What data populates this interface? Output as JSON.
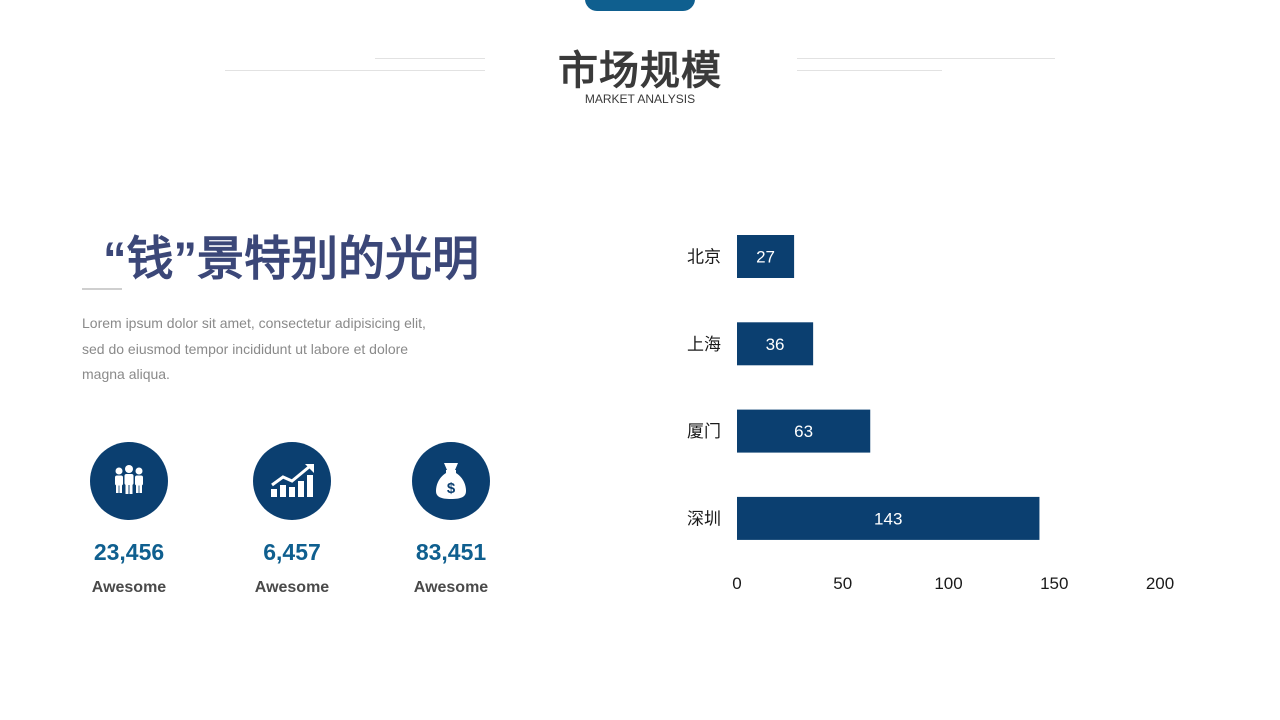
{
  "header": {
    "title": "市场规模",
    "subtitle": "MARKET ANALYSIS"
  },
  "left": {
    "headline": "“钱”景特别的光明",
    "body": "Lorem ipsum dolor sit amet, consectetur adipisicing elit, sed do eiusmod tempor incididunt ut labore et dolore magna aliqua."
  },
  "stats": [
    {
      "icon": "team-icon",
      "value": "23,456",
      "label": "Awesome"
    },
    {
      "icon": "growth-chart-icon",
      "value": "6,457",
      "label": "Awesome"
    },
    {
      "icon": "money-bag-icon",
      "value": "83,451",
      "label": "Awesome"
    }
  ],
  "colors": {
    "bar": "#0b3f70",
    "accent": "#0f5f8f",
    "headline": "#3b4778"
  },
  "chart_data": {
    "type": "bar",
    "orientation": "horizontal",
    "categories": [
      "北京",
      "上海",
      "厦门",
      "深圳"
    ],
    "values": [
      27,
      36,
      63,
      143
    ],
    "xlim": [
      0,
      200
    ],
    "xticks": [
      0,
      50,
      100,
      150,
      200
    ],
    "data_labels": true,
    "grid": false,
    "legend": "none"
  }
}
